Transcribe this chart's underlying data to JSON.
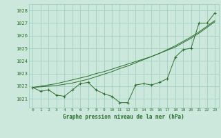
{
  "xlabel": "Graphe pression niveau de la mer (hPa)",
  "background_color": "#cce8dd",
  "grid_color": "#99ccbb",
  "line_color": "#2d6e2d",
  "xlim": [
    -0.5,
    23.5
  ],
  "ylim": [
    1020.3,
    1028.5
  ],
  "yticks": [
    1021,
    1022,
    1023,
    1024,
    1025,
    1026,
    1027,
    1028
  ],
  "xticks": [
    0,
    1,
    2,
    3,
    4,
    5,
    6,
    7,
    8,
    9,
    10,
    11,
    12,
    13,
    14,
    15,
    16,
    17,
    18,
    19,
    20,
    21,
    22,
    23
  ],
  "hours": [
    0,
    1,
    2,
    3,
    4,
    5,
    6,
    7,
    8,
    9,
    10,
    11,
    12,
    13,
    14,
    15,
    16,
    17,
    18,
    19,
    20,
    21,
    22,
    23
  ],
  "pressure_main": [
    1021.9,
    1021.6,
    1021.7,
    1021.3,
    1021.2,
    1021.7,
    1022.2,
    1022.3,
    1021.7,
    1021.4,
    1021.2,
    1020.7,
    1020.7,
    1022.1,
    1022.2,
    1022.1,
    1022.3,
    1022.6,
    1024.3,
    1024.9,
    1025.0,
    1027.0,
    1027.0,
    1027.8
  ],
  "pressure_smooth1": [
    1021.9,
    1022.0,
    1022.1,
    1022.2,
    1022.35,
    1022.5,
    1022.65,
    1022.8,
    1023.0,
    1023.15,
    1023.35,
    1023.55,
    1023.75,
    1023.95,
    1024.15,
    1024.35,
    1024.6,
    1024.85,
    1025.1,
    1025.45,
    1025.8,
    1026.2,
    1026.65,
    1027.1
  ],
  "pressure_smooth2": [
    1021.9,
    1021.95,
    1022.0,
    1022.05,
    1022.15,
    1022.25,
    1022.4,
    1022.55,
    1022.75,
    1022.95,
    1023.15,
    1023.4,
    1023.6,
    1023.85,
    1024.1,
    1024.35,
    1024.6,
    1024.9,
    1025.2,
    1025.55,
    1025.9,
    1026.3,
    1026.75,
    1027.2
  ]
}
